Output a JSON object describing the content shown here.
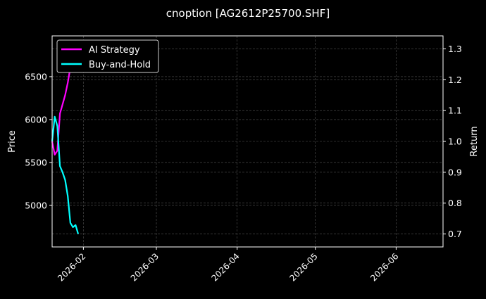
{
  "chart_data": {
    "type": "line",
    "title": "cnoption [AG2612P25700.SHF]",
    "ylabel_left": "Price",
    "ylabel_right": "Return",
    "xlim": [
      "2026-01-20",
      "2026-06-19"
    ],
    "ylim_left": [
      4516,
      6975
    ],
    "ylim_right": [
      0.658,
      1.342
    ],
    "x_ticks": [
      "2026-02",
      "2026-03",
      "2026-04",
      "2026-05",
      "2026-06"
    ],
    "x_tick_dates": [
      "2026-02-01",
      "2026-03-01",
      "2026-04-01",
      "2026-05-01",
      "2026-06-01"
    ],
    "y_ticks_left": [
      5000,
      5500,
      6000,
      6500
    ],
    "y_ticks_right": [
      0.7,
      0.8,
      0.9,
      1.0,
      1.1,
      1.2,
      1.3
    ],
    "grid": true,
    "legend_position": "upper-left",
    "x": [
      "2026-01-20",
      "2026-01-21",
      "2026-01-22",
      "2026-01-23",
      "2026-01-24",
      "2026-01-25",
      "2026-01-26",
      "2026-01-27",
      "2026-01-28",
      "2026-01-29",
      "2026-01-30"
    ],
    "series": [
      {
        "name": "AI Strategy",
        "color": "#ff00ff",
        "axis": "right",
        "values": [
          1.0,
          0.957,
          0.97,
          1.09,
          1.12,
          1.15,
          1.19,
          1.24,
          1.27,
          1.284,
          1.31
        ]
      },
      {
        "name": "Buy-and-Hold",
        "color": "#00ffff",
        "axis": "right",
        "values": [
          1.0,
          1.08,
          1.05,
          0.92,
          0.9,
          0.875,
          0.823,
          0.736,
          0.722,
          0.729,
          0.7
        ]
      }
    ]
  }
}
